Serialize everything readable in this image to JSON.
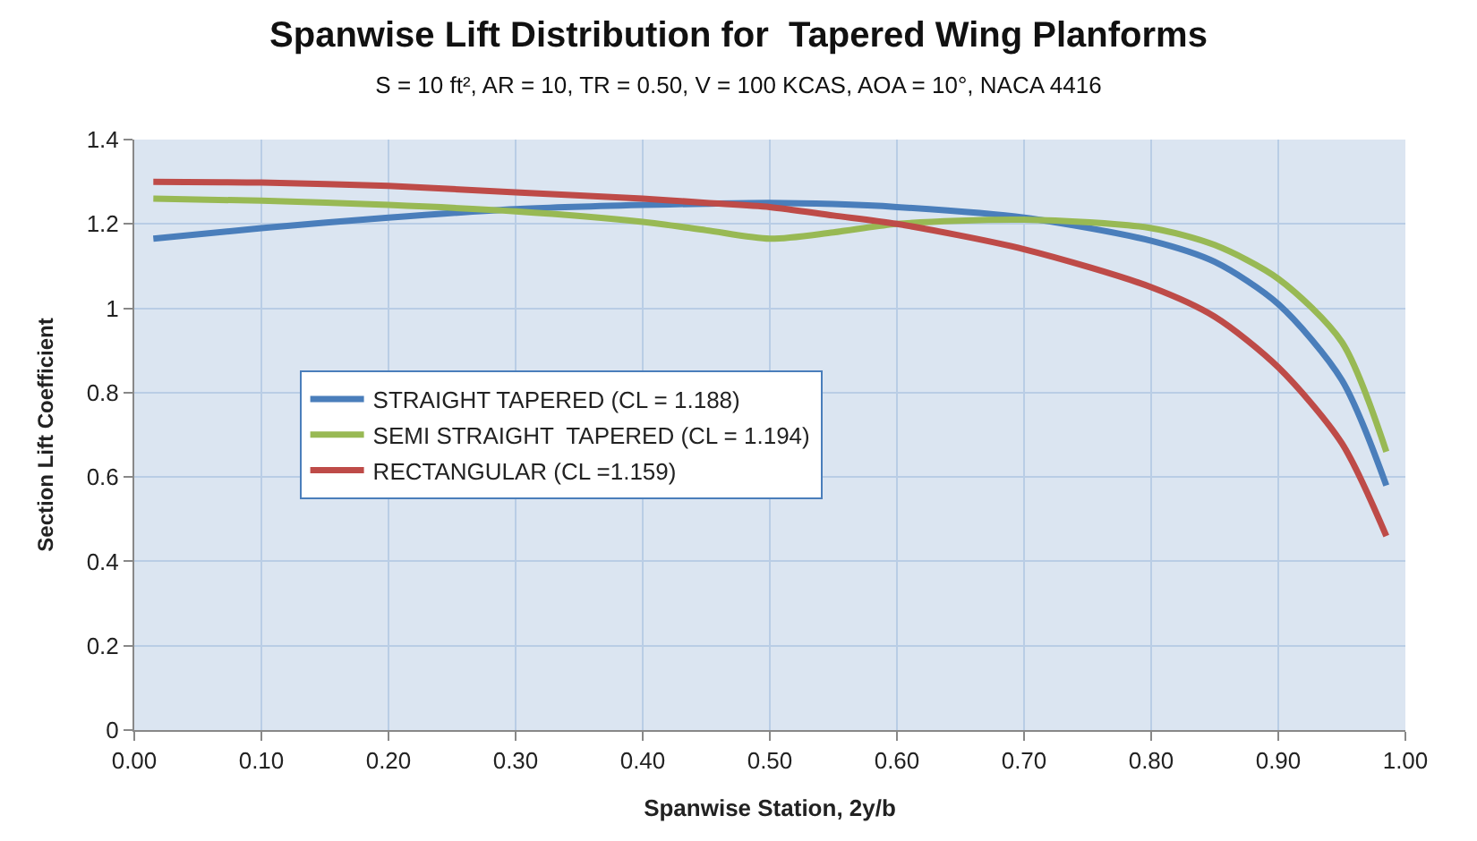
{
  "chart_data": {
    "type": "line",
    "title": "Spanwise Lift Distribution for  Tapered Wing Planforms",
    "subtitle": "S = 10 ft², AR = 10, TR = 0.50, V = 100 KCAS, AOA = 10°, NACA 4416",
    "xlabel": "Spanwise Station, 2y/b",
    "ylabel": "Section Lift Coefficient",
    "x": [
      0.015,
      0.1,
      0.2,
      0.3,
      0.4,
      0.45,
      0.5,
      0.55,
      0.6,
      0.7,
      0.8,
      0.85,
      0.9,
      0.95,
      0.985
    ],
    "series": [
      {
        "name": "STRAIGHT TAPERED (CL = 1.188)",
        "color": "#4a7ebb",
        "values": [
          1.165,
          1.19,
          1.215,
          1.235,
          1.245,
          1.248,
          1.25,
          1.247,
          1.24,
          1.215,
          1.16,
          1.11,
          1.01,
          0.83,
          0.58
        ]
      },
      {
        "name": "SEMI STRAIGHT  TAPERED (CL = 1.194)",
        "color": "#98b954",
        "values": [
          1.26,
          1.255,
          1.245,
          1.23,
          1.205,
          1.185,
          1.165,
          1.18,
          1.2,
          1.21,
          1.19,
          1.15,
          1.07,
          0.92,
          0.66
        ]
      },
      {
        "name": "RECTANGULAR (CL =1.159)",
        "color": "#be4b48",
        "values": [
          1.3,
          1.298,
          1.29,
          1.275,
          1.26,
          1.25,
          1.24,
          1.22,
          1.2,
          1.14,
          1.05,
          0.98,
          0.86,
          0.68,
          0.46
        ]
      }
    ],
    "xlim": [
      0,
      1
    ],
    "xticks": [
      {
        "value": 0,
        "label": "0.00"
      },
      {
        "value": 0.1,
        "label": "0.10"
      },
      {
        "value": 0.2,
        "label": "0.20"
      },
      {
        "value": 0.3,
        "label": "0.30"
      },
      {
        "value": 0.4,
        "label": "0.40"
      },
      {
        "value": 0.5,
        "label": "0.50"
      },
      {
        "value": 0.6,
        "label": "0.60"
      },
      {
        "value": 0.7,
        "label": "0.70"
      },
      {
        "value": 0.8,
        "label": "0.80"
      },
      {
        "value": 0.9,
        "label": "0.90"
      },
      {
        "value": 1,
        "label": "1.00"
      }
    ],
    "ylim": [
      0,
      1.4
    ],
    "yticks": [
      0,
      0.2,
      0.4,
      0.6,
      0.8,
      1,
      1.2,
      1.4
    ],
    "grid": true,
    "legend": "center",
    "marker": "none",
    "line_style": "solid"
  }
}
